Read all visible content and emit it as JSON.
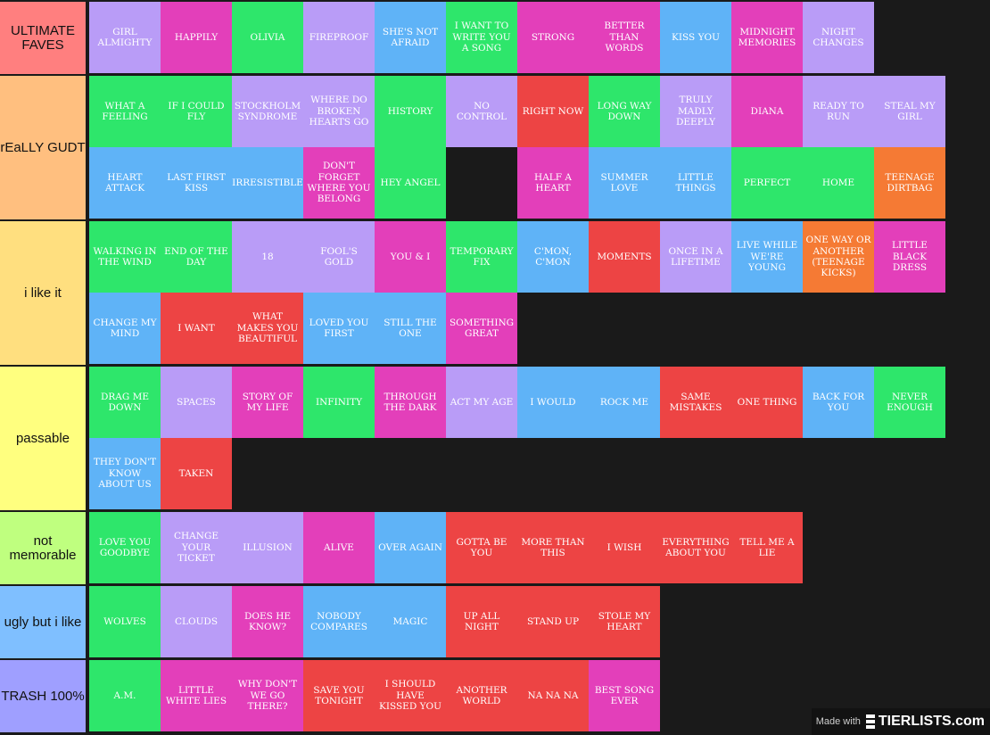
{
  "colors": {
    "purple": "#b99cf7",
    "pink": "#e33fba",
    "green": "#2ee66b",
    "blue": "#5fb3f7",
    "red": "#ed4444",
    "orange": "#f57a34",
    "background": "#1a1a1a"
  },
  "tiers": [
    {
      "label": "ULTIMATE FAVES",
      "color": "#ff7f7f",
      "items": [
        {
          "text": "GIRL ALMIGHTY",
          "color": "purple"
        },
        {
          "text": "HAPPILY",
          "color": "pink"
        },
        {
          "text": "OLIVIA",
          "color": "green"
        },
        {
          "text": "FIREPROOF",
          "color": "purple"
        },
        {
          "text": "SHE'S NOT AFRAID",
          "color": "blue"
        },
        {
          "text": "I WANT TO WRITE YOU A SONG",
          "color": "green"
        },
        {
          "text": "STRONG",
          "color": "pink"
        },
        {
          "text": "BETTER THAN WORDS",
          "color": "pink"
        },
        {
          "text": "KISS YOU",
          "color": "blue"
        },
        {
          "text": "MIDNIGHT MEMORIES",
          "color": "pink"
        },
        {
          "text": "NIGHT CHANGES",
          "color": "purple"
        }
      ]
    },
    {
      "label": "rEaLLY GUDT",
      "color": "#ffbf7f",
      "items": [
        {
          "text": "WHAT A FEELING",
          "color": "green"
        },
        {
          "text": "IF I COULD FLY",
          "color": "green"
        },
        {
          "text": "STOCKHOLM SYNDROME",
          "color": "purple"
        },
        {
          "text": "WHERE DO BROKEN HEARTS GO",
          "color": "purple"
        },
        {
          "text": "HISTORY",
          "color": "green"
        },
        {
          "text": "NO CONTROL",
          "color": "purple"
        },
        {
          "text": "RIGHT NOW",
          "color": "red"
        },
        {
          "text": "LONG WAY DOWN",
          "color": "green"
        },
        {
          "text": "TRULY MADLY DEEPLY",
          "color": "purple"
        },
        {
          "text": "DIANA",
          "color": "pink"
        },
        {
          "text": "READY TO RUN",
          "color": "purple"
        },
        {
          "text": "STEAL MY GIRL",
          "color": "purple"
        },
        {
          "text": "HEART ATTACK",
          "color": "blue"
        },
        {
          "text": "LAST FIRST KISS",
          "color": "blue"
        },
        {
          "text": "IRRESISTIBLE",
          "color": "blue"
        },
        {
          "text": "DON'T FORGET WHERE YOU BELONG",
          "color": "pink"
        },
        {
          "text": "HEY ANGEL",
          "color": "green"
        },
        {
          "text": "HALF A HEART",
          "color": "pink"
        },
        {
          "text": "SUMMER LOVE",
          "color": "blue"
        },
        {
          "text": "LITTLE THINGS",
          "color": "blue"
        },
        {
          "text": "PERFECT",
          "color": "green"
        },
        {
          "text": "HOME",
          "color": "green"
        },
        {
          "text": "TEENAGE DIRTBAG",
          "color": "orange"
        }
      ]
    },
    {
      "label": "i like it",
      "color": "#ffdf7f",
      "items": [
        {
          "text": "WALKING IN THE WIND",
          "color": "green"
        },
        {
          "text": "END OF THE DAY",
          "color": "green"
        },
        {
          "text": "18",
          "color": "purple"
        },
        {
          "text": "FOOL'S GOLD",
          "color": "purple"
        },
        {
          "text": "YOU & I",
          "color": "pink"
        },
        {
          "text": "TEMPORARY FIX",
          "color": "green"
        },
        {
          "text": "C'MON, C'MON",
          "color": "blue"
        },
        {
          "text": "MOMENTS",
          "color": "red"
        },
        {
          "text": "ONCE IN A LIFETIME",
          "color": "purple"
        },
        {
          "text": "LIVE WHILE WE'RE YOUNG",
          "color": "blue"
        },
        {
          "text": "ONE WAY OR ANOTHER (TEENAGE KICKS)",
          "color": "orange"
        },
        {
          "text": "LITTLE BLACK DRESS",
          "color": "pink"
        },
        {
          "text": "CHANGE MY MIND",
          "color": "blue"
        },
        {
          "text": "I WANT",
          "color": "red"
        },
        {
          "text": "WHAT MAKES YOU BEAUTIFUL",
          "color": "red"
        },
        {
          "text": "LOVED YOU FIRST",
          "color": "blue"
        },
        {
          "text": "STILL THE ONE",
          "color": "blue"
        },
        {
          "text": "SOMETHING GREAT",
          "color": "pink"
        }
      ]
    },
    {
      "label": "passable",
      "color": "#ffff7f",
      "items": [
        {
          "text": "DRAG ME DOWN",
          "color": "green"
        },
        {
          "text": "SPACES",
          "color": "purple"
        },
        {
          "text": "STORY OF MY LIFE",
          "color": "pink"
        },
        {
          "text": "INFINITY",
          "color": "green"
        },
        {
          "text": "THROUGH THE DARK",
          "color": "pink"
        },
        {
          "text": "ACT MY AGE",
          "color": "purple"
        },
        {
          "text": "I WOULD",
          "color": "blue"
        },
        {
          "text": "ROCK ME",
          "color": "blue"
        },
        {
          "text": "SAME MISTAKES",
          "color": "red"
        },
        {
          "text": "ONE THING",
          "color": "red"
        },
        {
          "text": "BACK FOR YOU",
          "color": "blue"
        },
        {
          "text": "NEVER ENOUGH",
          "color": "green"
        },
        {
          "text": "THEY DON'T KNOW ABOUT US",
          "color": "blue"
        },
        {
          "text": "TAKEN",
          "color": "red"
        }
      ]
    },
    {
      "label": "not memorable",
      "color": "#bfff7f",
      "items": [
        {
          "text": "LOVE YOU GOODBYE",
          "color": "green"
        },
        {
          "text": "CHANGE YOUR TICKET",
          "color": "purple"
        },
        {
          "text": "ILLUSION",
          "color": "purple"
        },
        {
          "text": "ALIVE",
          "color": "pink"
        },
        {
          "text": "OVER AGAIN",
          "color": "blue"
        },
        {
          "text": "GOTTA BE YOU",
          "color": "red"
        },
        {
          "text": "MORE THAN THIS",
          "color": "red"
        },
        {
          "text": "I WISH",
          "color": "red"
        },
        {
          "text": "EVERYTHING ABOUT YOU",
          "color": "red"
        },
        {
          "text": "TELL ME A LIE",
          "color": "red"
        }
      ]
    },
    {
      "label": "ugly but i like",
      "color": "#7fbfff",
      "items": [
        {
          "text": "WOLVES",
          "color": "green"
        },
        {
          "text": "CLOUDS",
          "color": "purple"
        },
        {
          "text": "DOES HE KNOW?",
          "color": "pink"
        },
        {
          "text": "NOBODY COMPARES",
          "color": "blue"
        },
        {
          "text": "MAGIC",
          "color": "blue"
        },
        {
          "text": "UP ALL NIGHT",
          "color": "red"
        },
        {
          "text": "STAND UP",
          "color": "red"
        },
        {
          "text": "STOLE MY HEART",
          "color": "red"
        }
      ]
    },
    {
      "label": "TRASH 100%",
      "color": "#9f9fff",
      "items": [
        {
          "text": "A.M.",
          "color": "green"
        },
        {
          "text": "LITTLE WHITE LIES",
          "color": "pink"
        },
        {
          "text": "WHY DON'T WE GO THERE?",
          "color": "pink"
        },
        {
          "text": "SAVE YOU TONIGHT",
          "color": "red"
        },
        {
          "text": "I SHOULD HAVE KISSED YOU",
          "color": "red"
        },
        {
          "text": "ANOTHER WORLD",
          "color": "red"
        },
        {
          "text": "NA NA NA",
          "color": "red"
        },
        {
          "text": "BEST SONG EVER",
          "color": "pink"
        }
      ]
    }
  ],
  "watermark": {
    "prefix": "Made with",
    "brand": "TIERLISTS.com"
  }
}
